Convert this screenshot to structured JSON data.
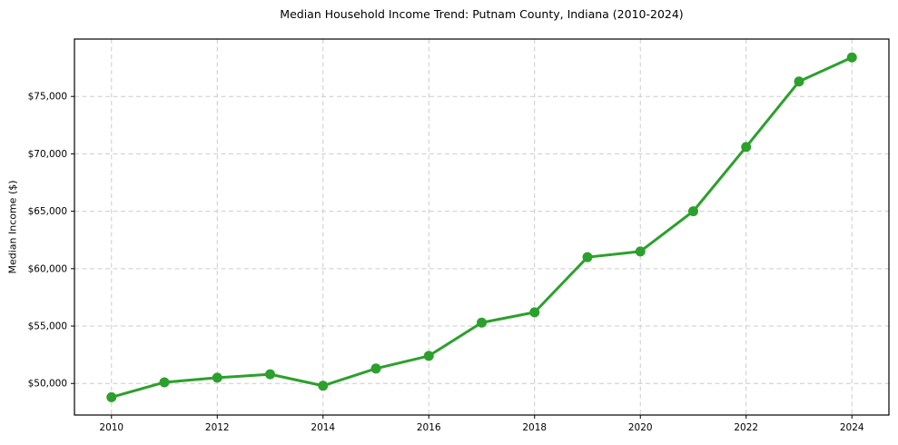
{
  "chart_data": {
    "type": "line",
    "title": "Median Household Income Trend: Putnam County, Indiana (2010-2024)",
    "xlabel": "",
    "ylabel": "Median Income ($)",
    "x": [
      2010,
      2011,
      2012,
      2013,
      2014,
      2015,
      2016,
      2017,
      2018,
      2019,
      2020,
      2021,
      2022,
      2023,
      2024
    ],
    "values": [
      48800,
      50100,
      50500,
      50800,
      49800,
      51300,
      52400,
      55300,
      56200,
      61000,
      61500,
      65000,
      70600,
      76300,
      78400
    ],
    "xlim": [
      2009.3,
      2024.7
    ],
    "ylim": [
      47250,
      80000
    ],
    "xticks": {
      "values": [
        2010,
        2012,
        2014,
        2016,
        2018,
        2020,
        2022,
        2024
      ],
      "labels": [
        "2010",
        "2012",
        "2014",
        "2016",
        "2018",
        "2020",
        "2022",
        "2024"
      ]
    },
    "yticks": {
      "values": [
        50000,
        55000,
        60000,
        65000,
        70000,
        75000
      ],
      "labels": [
        "$50,000",
        "$55,000",
        "$60,000",
        "$65,000",
        "$70,000",
        "$75,000"
      ]
    },
    "grid": true,
    "legend": "none",
    "style": {
      "line_color": "#2ca02c",
      "marker_color": "#2ca02c",
      "marker_radius": 5.5,
      "line_width": 3,
      "grid_color": "#cccccc",
      "spine_color": "#000000",
      "background": "#ffffff"
    }
  }
}
